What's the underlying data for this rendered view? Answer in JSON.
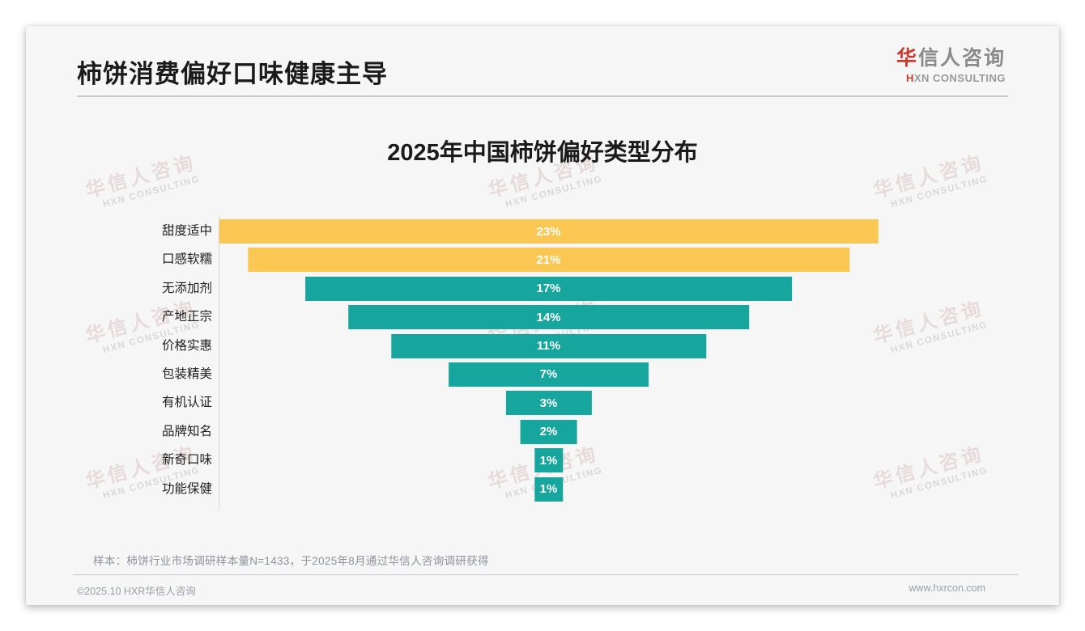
{
  "page": {
    "background": "#ffffff",
    "card_background": "#f6f6f7"
  },
  "header": {
    "title": "柿饼消费偏好口味健康主导",
    "logo": {
      "cn_accent": "华",
      "cn_rest": "信人咨询",
      "en_accent": "H",
      "en_rest": "XN CONSULTING",
      "accent_color": "#c83a30"
    }
  },
  "chart_data": {
    "type": "bar",
    "subtype": "centered-funnel",
    "orientation": "horizontal",
    "title": "2025年中国柿饼偏好类型分布",
    "unit": "%",
    "categories": [
      "甜度适中",
      "口感软糯",
      "无添加剂",
      "产地正宗",
      "价格实惠",
      "包装精美",
      "有机认证",
      "品牌知名",
      "新奇口味",
      "功能保健"
    ],
    "values": [
      23,
      21,
      17,
      14,
      11,
      7,
      3,
      2,
      1,
      1
    ],
    "value_labels": [
      "23%",
      "21%",
      "17%",
      "14%",
      "11%",
      "7%",
      "3%",
      "2%",
      "1%",
      "1%"
    ],
    "colors": [
      "#f9c752",
      "#f9c752",
      "#16a69d",
      "#16a69d",
      "#16a69d",
      "#16a69d",
      "#16a69d",
      "#16a69d",
      "#16a69d",
      "#16a69d"
    ],
    "highlight_color": "#f9c752",
    "default_color": "#16a69d",
    "bar_label_color": "#ffffff",
    "legend": "none",
    "grid": "off"
  },
  "watermark": {
    "line1": "华信人咨询",
    "line2": "HXN CONSULTING"
  },
  "footnote": "样本：柿饼行业市场调研样本量N=1433，于2025年8月通过华信人咨询调研获得",
  "footer": {
    "left": "©2025.10 HXR华信人咨询",
    "right": "www.hxrcon.com"
  }
}
